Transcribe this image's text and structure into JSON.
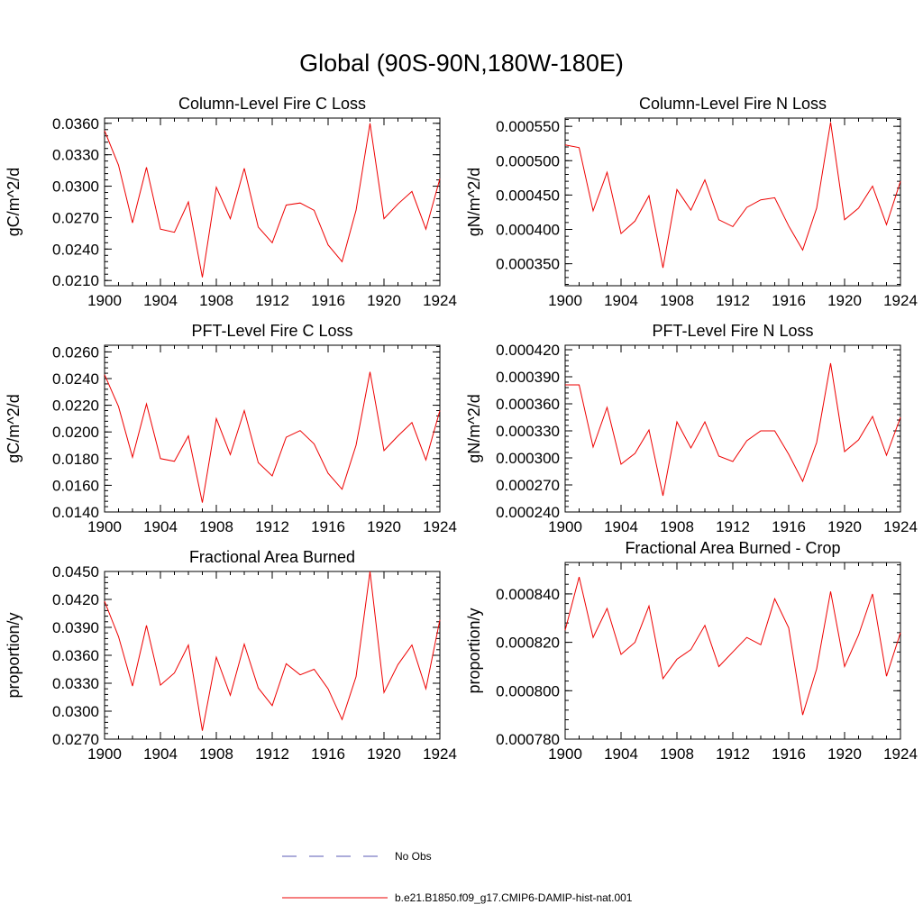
{
  "page": {
    "title": "Global (90S-90N,180W-180E)"
  },
  "legend": [
    {
      "label": "No Obs",
      "color": "#5a5ab4",
      "dash": true
    },
    {
      "label": "b.e21.B1850.f09_g17.CMIP6-DAMIP-hist-nat.001",
      "color": "#ee0000",
      "dash": false
    }
  ],
  "chart_data": [
    {
      "type": "line",
      "title": "Column-Level Fire C Loss",
      "ylabel": "gC/m^2/d",
      "xlabel": "",
      "xlim": [
        1900,
        1924
      ],
      "ylim": [
        0.0205,
        0.0365
      ],
      "xticks": [
        1900,
        1904,
        1908,
        1912,
        1916,
        1920,
        1924
      ],
      "yticks": [
        0.021,
        0.024,
        0.027,
        0.03,
        0.033,
        0.036
      ],
      "ytick_labels": [
        "0.0210",
        "0.0240",
        "0.0270",
        "0.0300",
        "0.0330",
        "0.0360"
      ],
      "x": [
        1900,
        1901,
        1902,
        1903,
        1904,
        1905,
        1906,
        1907,
        1908,
        1909,
        1910,
        1911,
        1912,
        1913,
        1914,
        1915,
        1916,
        1917,
        1918,
        1919,
        1920,
        1921,
        1922,
        1923,
        1924
      ],
      "series": [
        {
          "name": "b.e21.B1850.f09_g17.CMIP6-DAMIP-hist-nat.001",
          "color": "#ee0000",
          "values": [
            0.0353,
            0.032,
            0.0265,
            0.0318,
            0.0259,
            0.0256,
            0.0285,
            0.0213,
            0.0299,
            0.0269,
            0.0317,
            0.0261,
            0.0246,
            0.0282,
            0.0284,
            0.0277,
            0.0244,
            0.0228,
            0.0277,
            0.036,
            0.0269,
            0.0283,
            0.0295,
            0.0259,
            0.0307
          ]
        }
      ]
    },
    {
      "type": "line",
      "title": "Column-Level Fire N Loss",
      "ylabel": "gN/m^2/d",
      "xlabel": "",
      "xlim": [
        1900,
        1924
      ],
      "ylim": [
        0.000318,
        0.000562
      ],
      "xticks": [
        1900,
        1904,
        1908,
        1912,
        1916,
        1920,
        1924
      ],
      "yticks": [
        0.00035,
        0.0004,
        0.00045,
        0.0005,
        0.00055
      ],
      "ytick_labels": [
        "0.000350",
        "0.000400",
        "0.000450",
        "0.000500",
        "0.000550"
      ],
      "x": [
        1900,
        1901,
        1902,
        1903,
        1904,
        1905,
        1906,
        1907,
        1908,
        1909,
        1910,
        1911,
        1912,
        1913,
        1914,
        1915,
        1916,
        1917,
        1918,
        1919,
        1920,
        1921,
        1922,
        1923,
        1924
      ],
      "series": [
        {
          "name": "b.e21.B1850.f09_g17.CMIP6-DAMIP-hist-nat.001",
          "color": "#ee0000",
          "values": [
            0.000523,
            0.000519,
            0.000427,
            0.000483,
            0.000394,
            0.000412,
            0.000449,
            0.000344,
            0.000458,
            0.000428,
            0.000472,
            0.000414,
            0.000404,
            0.000432,
            0.000443,
            0.000446,
            0.000405,
            0.00037,
            0.000431,
            0.000556,
            0.000414,
            0.000431,
            0.000463,
            0.000407,
            0.00047
          ]
        }
      ]
    },
    {
      "type": "line",
      "title": "PFT-Level Fire C Loss",
      "ylabel": "gC/m^2/d",
      "xlabel": "",
      "xlim": [
        1900,
        1924
      ],
      "ylim": [
        0.014,
        0.0265
      ],
      "xticks": [
        1900,
        1904,
        1908,
        1912,
        1916,
        1920,
        1924
      ],
      "yticks": [
        0.014,
        0.016,
        0.018,
        0.02,
        0.022,
        0.024,
        0.026
      ],
      "ytick_labels": [
        "0.0140",
        "0.0160",
        "0.0180",
        "0.0200",
        "0.0220",
        "0.0240",
        "0.0260"
      ],
      "x": [
        1900,
        1901,
        1902,
        1903,
        1904,
        1905,
        1906,
        1907,
        1908,
        1909,
        1910,
        1911,
        1912,
        1913,
        1914,
        1915,
        1916,
        1917,
        1918,
        1919,
        1920,
        1921,
        1922,
        1923,
        1924
      ],
      "series": [
        {
          "name": "b.e21.B1850.f09_g17.CMIP6-DAMIP-hist-nat.001",
          "color": "#ee0000",
          "values": [
            0.0243,
            0.0219,
            0.0181,
            0.0221,
            0.018,
            0.0178,
            0.0197,
            0.0147,
            0.021,
            0.0183,
            0.0216,
            0.0177,
            0.0167,
            0.0196,
            0.0201,
            0.0191,
            0.0169,
            0.0157,
            0.019,
            0.0245,
            0.0186,
            0.0197,
            0.0207,
            0.0179,
            0.0216
          ]
        }
      ]
    },
    {
      "type": "line",
      "title": "PFT-Level Fire N Loss",
      "ylabel": "gN/m^2/d",
      "xlabel": "",
      "xlim": [
        1900,
        1924
      ],
      "ylim": [
        0.00024,
        0.000425
      ],
      "xticks": [
        1900,
        1904,
        1908,
        1912,
        1916,
        1920,
        1924
      ],
      "yticks": [
        0.00024,
        0.00027,
        0.0003,
        0.00033,
        0.00036,
        0.00039,
        0.00042
      ],
      "ytick_labels": [
        "0.000240",
        "0.000270",
        "0.000300",
        "0.000330",
        "0.000360",
        "0.000390",
        "0.000420"
      ],
      "x": [
        1900,
        1901,
        1902,
        1903,
        1904,
        1905,
        1906,
        1907,
        1908,
        1909,
        1910,
        1911,
        1912,
        1913,
        1914,
        1915,
        1916,
        1917,
        1918,
        1919,
        1920,
        1921,
        1922,
        1923,
        1924
      ],
      "series": [
        {
          "name": "b.e21.B1850.f09_g17.CMIP6-DAMIP-hist-nat.001",
          "color": "#ee0000",
          "values": [
            0.000381,
            0.000381,
            0.000312,
            0.000356,
            0.000293,
            0.000305,
            0.000331,
            0.000258,
            0.00034,
            0.000311,
            0.00034,
            0.000302,
            0.000296,
            0.000319,
            0.00033,
            0.00033,
            0.000304,
            0.000274,
            0.000317,
            0.000405,
            0.000307,
            0.00032,
            0.000346,
            0.000303,
            0.000345
          ]
        }
      ]
    },
    {
      "type": "line",
      "title": "Fractional Area Burned",
      "ylabel": "proportion/y",
      "xlabel": "",
      "xlim": [
        1900,
        1924
      ],
      "ylim": [
        0.027,
        0.045
      ],
      "xticks": [
        1900,
        1904,
        1908,
        1912,
        1916,
        1920,
        1924
      ],
      "yticks": [
        0.027,
        0.03,
        0.033,
        0.036,
        0.039,
        0.042,
        0.045
      ],
      "ytick_labels": [
        "0.0270",
        "0.0300",
        "0.0330",
        "0.0360",
        "0.0390",
        "0.0420",
        "0.0450"
      ],
      "x": [
        1900,
        1901,
        1902,
        1903,
        1904,
        1905,
        1906,
        1907,
        1908,
        1909,
        1910,
        1911,
        1912,
        1913,
        1914,
        1915,
        1916,
        1917,
        1918,
        1919,
        1920,
        1921,
        1922,
        1923,
        1924
      ],
      "series": [
        {
          "name": "b.e21.B1850.f09_g17.CMIP6-DAMIP-hist-nat.001",
          "color": "#ee0000",
          "values": [
            0.0418,
            0.038,
            0.0327,
            0.0392,
            0.0328,
            0.0341,
            0.0371,
            0.0279,
            0.0358,
            0.0317,
            0.0372,
            0.0325,
            0.0306,
            0.0351,
            0.0339,
            0.0345,
            0.0324,
            0.0291,
            0.0337,
            0.045,
            0.032,
            0.035,
            0.0371,
            0.0324,
            0.0398
          ]
        }
      ]
    },
    {
      "type": "line",
      "title": "Fractional Area Burned - Crop",
      "ylabel": "proportion/y",
      "xlabel": "",
      "xlim": [
        1900,
        1924
      ],
      "ylim": [
        0.00078,
        0.000853
      ],
      "xticks": [
        1900,
        1904,
        1908,
        1912,
        1916,
        1920,
        1924
      ],
      "yticks": [
        0.00078,
        0.0008,
        0.00082,
        0.00084
      ],
      "ytick_labels": [
        "0.000780",
        "0.000800",
        "0.000820",
        "0.000840"
      ],
      "x": [
        1900,
        1901,
        1902,
        1903,
        1904,
        1905,
        1906,
        1907,
        1908,
        1909,
        1910,
        1911,
        1912,
        1913,
        1914,
        1915,
        1916,
        1917,
        1918,
        1919,
        1920,
        1921,
        1922,
        1923,
        1924
      ],
      "series": [
        {
          "name": "b.e21.B1850.f09_g17.CMIP6-DAMIP-hist-nat.001",
          "color": "#ee0000",
          "values": [
            0.000825,
            0.000847,
            0.000822,
            0.000834,
            0.000815,
            0.00082,
            0.000835,
            0.000805,
            0.000813,
            0.000817,
            0.000827,
            0.00081,
            0.000816,
            0.000822,
            0.000819,
            0.000838,
            0.000826,
            0.00079,
            0.000809,
            0.000841,
            0.00081,
            0.000823,
            0.00084,
            0.000806,
            0.000824
          ]
        }
      ]
    }
  ]
}
